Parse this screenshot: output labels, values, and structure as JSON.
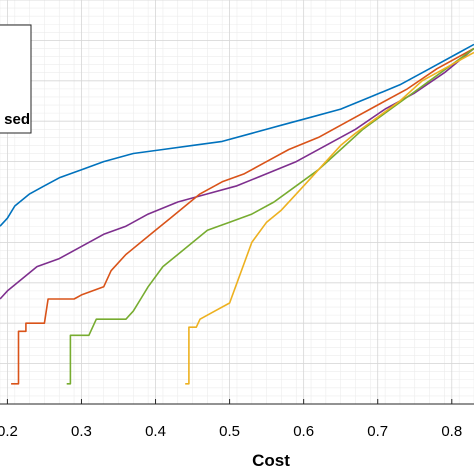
{
  "chart_data": {
    "type": "line",
    "title": "",
    "xlabel": "Cost",
    "ylabel": "",
    "xlim": [
      0.19,
      0.83
    ],
    "ylim": [
      0,
      1
    ],
    "grid": "major and minor",
    "legend": {
      "placement": "top-left",
      "visible_text": "sed"
    },
    "x_ticks": [
      "0.2",
      "0.3",
      "0.4",
      "0.5",
      "0.6",
      "0.7",
      "0.8"
    ],
    "series": [
      {
        "color": "#0072BD",
        "points": [
          [
            0.19,
            0.44
          ],
          [
            0.2,
            0.46
          ],
          [
            0.21,
            0.49
          ],
          [
            0.23,
            0.52
          ],
          [
            0.25,
            0.54
          ],
          [
            0.27,
            0.56
          ],
          [
            0.3,
            0.58
          ],
          [
            0.33,
            0.6
          ],
          [
            0.37,
            0.62
          ],
          [
            0.41,
            0.63
          ],
          [
            0.45,
            0.64
          ],
          [
            0.49,
            0.65
          ],
          [
            0.53,
            0.67
          ],
          [
            0.57,
            0.69
          ],
          [
            0.61,
            0.71
          ],
          [
            0.65,
            0.73
          ],
          [
            0.69,
            0.76
          ],
          [
            0.73,
            0.79
          ],
          [
            0.77,
            0.83
          ],
          [
            0.81,
            0.87
          ],
          [
            0.83,
            0.89
          ]
        ]
      },
      {
        "color": "#7E2F8E",
        "points": [
          [
            0.19,
            0.26
          ],
          [
            0.2,
            0.28
          ],
          [
            0.22,
            0.31
          ],
          [
            0.24,
            0.34
          ],
          [
            0.27,
            0.36
          ],
          [
            0.3,
            0.39
          ],
          [
            0.33,
            0.42
          ],
          [
            0.36,
            0.44
          ],
          [
            0.39,
            0.47
          ],
          [
            0.43,
            0.5
          ],
          [
            0.47,
            0.52
          ],
          [
            0.51,
            0.54
          ],
          [
            0.55,
            0.57
          ],
          [
            0.59,
            0.6
          ],
          [
            0.63,
            0.64
          ],
          [
            0.67,
            0.68
          ],
          [
            0.71,
            0.73
          ],
          [
            0.75,
            0.77
          ],
          [
            0.79,
            0.82
          ],
          [
            0.83,
            0.88
          ]
        ]
      },
      {
        "color": "#D95319",
        "points": [
          [
            0.205,
            0.05
          ],
          [
            0.215,
            0.05
          ],
          [
            0.215,
            0.18
          ],
          [
            0.225,
            0.18
          ],
          [
            0.225,
            0.2
          ],
          [
            0.25,
            0.2
          ],
          [
            0.255,
            0.26
          ],
          [
            0.29,
            0.26
          ],
          [
            0.3,
            0.27
          ],
          [
            0.33,
            0.29
          ],
          [
            0.34,
            0.33
          ],
          [
            0.36,
            0.37
          ],
          [
            0.38,
            0.4
          ],
          [
            0.4,
            0.43
          ],
          [
            0.42,
            0.46
          ],
          [
            0.44,
            0.49
          ],
          [
            0.46,
            0.52
          ],
          [
            0.49,
            0.55
          ],
          [
            0.52,
            0.57
          ],
          [
            0.55,
            0.6
          ],
          [
            0.58,
            0.63
          ],
          [
            0.62,
            0.66
          ],
          [
            0.66,
            0.7
          ],
          [
            0.7,
            0.74
          ],
          [
            0.74,
            0.78
          ],
          [
            0.78,
            0.83
          ],
          [
            0.83,
            0.88
          ]
        ]
      },
      {
        "color": "#77AC30",
        "points": [
          [
            0.28,
            0.05
          ],
          [
            0.285,
            0.05
          ],
          [
            0.285,
            0.17
          ],
          [
            0.31,
            0.17
          ],
          [
            0.32,
            0.21
          ],
          [
            0.36,
            0.21
          ],
          [
            0.37,
            0.23
          ],
          [
            0.38,
            0.26
          ],
          [
            0.39,
            0.29
          ],
          [
            0.41,
            0.34
          ],
          [
            0.43,
            0.37
          ],
          [
            0.45,
            0.4
          ],
          [
            0.47,
            0.43
          ],
          [
            0.5,
            0.45
          ],
          [
            0.53,
            0.47
          ],
          [
            0.56,
            0.5
          ],
          [
            0.59,
            0.54
          ],
          [
            0.62,
            0.58
          ],
          [
            0.65,
            0.63
          ],
          [
            0.68,
            0.68
          ],
          [
            0.71,
            0.72
          ],
          [
            0.74,
            0.76
          ],
          [
            0.77,
            0.8
          ],
          [
            0.8,
            0.84
          ],
          [
            0.83,
            0.88
          ]
        ]
      },
      {
        "color": "#EDB120",
        "points": [
          [
            0.44,
            0.05
          ],
          [
            0.445,
            0.05
          ],
          [
            0.445,
            0.19
          ],
          [
            0.455,
            0.19
          ],
          [
            0.46,
            0.21
          ],
          [
            0.48,
            0.23
          ],
          [
            0.5,
            0.25
          ],
          [
            0.51,
            0.3
          ],
          [
            0.52,
            0.35
          ],
          [
            0.53,
            0.4
          ],
          [
            0.55,
            0.45
          ],
          [
            0.57,
            0.48
          ],
          [
            0.59,
            0.52
          ],
          [
            0.61,
            0.56
          ],
          [
            0.63,
            0.6
          ],
          [
            0.65,
            0.64
          ],
          [
            0.67,
            0.67
          ],
          [
            0.7,
            0.71
          ],
          [
            0.73,
            0.75
          ],
          [
            0.76,
            0.8
          ],
          [
            0.8,
            0.84
          ],
          [
            0.83,
            0.87
          ]
        ]
      }
    ]
  }
}
